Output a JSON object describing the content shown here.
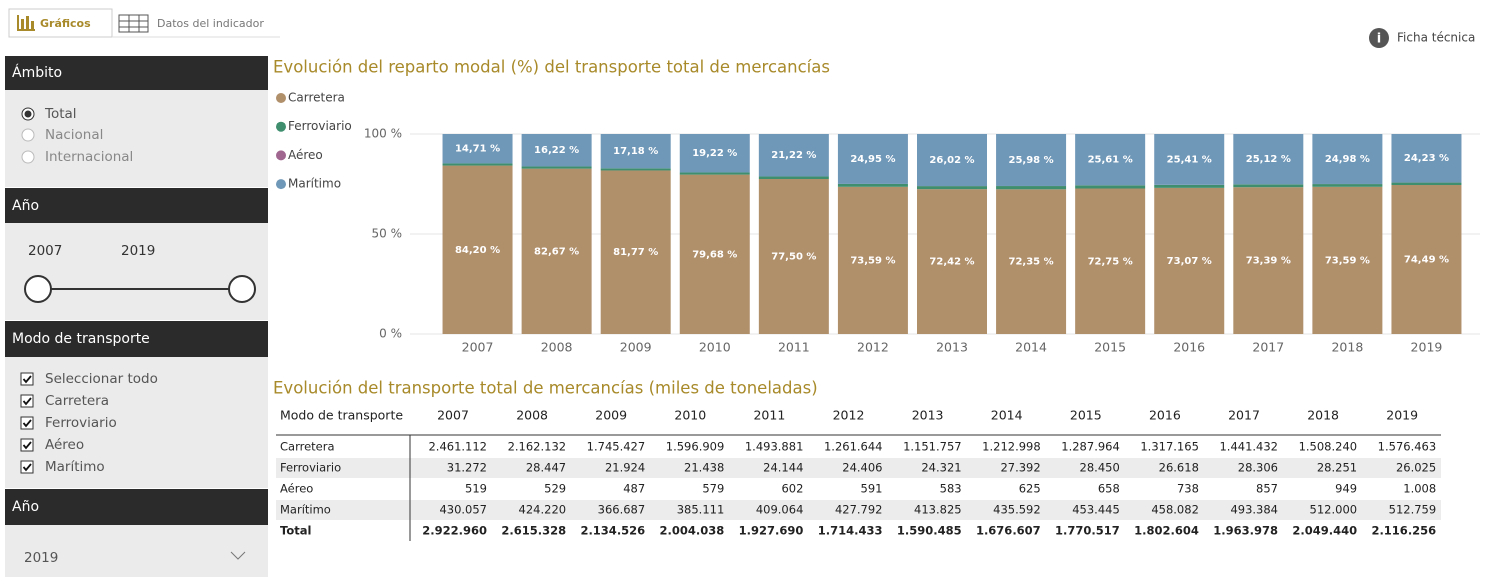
{
  "tabs": [
    "Gráficos",
    "Datos del indicador"
  ],
  "info": "Ficha técnica",
  "filters": {
    "ambito": {
      "title": "Ámbito",
      "options": [
        "Total",
        "Nacional",
        "Internacional"
      ]
    },
    "ano_range": {
      "title": "Año",
      "from": "2007",
      "to": "2019"
    },
    "modo": {
      "title": "Modo de transporte",
      "options": [
        "Seleccionar todo",
        "Carretera",
        "Ferroviario",
        "Aéreo",
        "Marítimo"
      ]
    },
    "ano": {
      "title": "Año",
      "selected": "2019"
    }
  },
  "chart_data": {
    "type": "stacked_bar",
    "title": "Evolución del reparto modal (%) del transporte total de mercancías",
    "categories": [
      "2007",
      "2008",
      "2009",
      "2010",
      "2011",
      "2012",
      "2013",
      "2014",
      "2015",
      "2016",
      "2017",
      "2018",
      "2019"
    ],
    "ylim": [
      0,
      100
    ],
    "yticks": [
      {
        "value": 0,
        "label": "0 %"
      },
      {
        "value": 50,
        "label": "50 %"
      },
      {
        "value": 100,
        "label": "100 %"
      }
    ],
    "grid": true,
    "legend": "top-left",
    "series": [
      {
        "name": "Carretera",
        "color": "#b08f6b",
        "values": [
          84.2,
          82.67,
          81.77,
          79.68,
          77.5,
          73.59,
          72.42,
          72.35,
          72.75,
          73.07,
          73.39,
          73.59,
          74.49
        ],
        "value_labels": [
          "84,20 %",
          "82,67 %",
          "81,77 %",
          "79,68 %",
          "77,50 %",
          "73,59 %",
          "72,42 %",
          "72,35 %",
          "72,75 %",
          "73,07 %",
          "73,39 %",
          "73,59 %",
          "74,49 %"
        ]
      },
      {
        "name": "Ferroviario",
        "color": "#3f8f6f",
        "values": [
          1.07,
          1.09,
          1.03,
          1.07,
          1.25,
          1.42,
          1.53,
          1.63,
          1.61,
          1.48,
          1.44,
          1.38,
          1.23
        ]
      },
      {
        "name": "Aéreo",
        "color": "#a0668f",
        "values": [
          0.02,
          0.02,
          0.02,
          0.03,
          0.03,
          0.03,
          0.04,
          0.04,
          0.04,
          0.04,
          0.04,
          0.05,
          0.05
        ]
      },
      {
        "name": "Marítimo",
        "color": "#6f97b7",
        "values": [
          14.71,
          16.22,
          17.18,
          19.22,
          21.22,
          24.95,
          26.02,
          25.98,
          25.61,
          25.41,
          25.12,
          24.98,
          24.23
        ],
        "value_labels": [
          "14,71 %",
          "16,22 %",
          "17,18 %",
          "19,22 %",
          "21,22 %",
          "24,95 %",
          "26,02 %",
          "25,98 %",
          "25,61 %",
          "25,41 %",
          "25,12 %",
          "24,98 %",
          "24,23 %"
        ]
      }
    ]
  },
  "table": {
    "title": "Evolución del transporte total de mercancías (miles de toneladas)",
    "header": [
      "Modo de transporte",
      "2007",
      "2008",
      "2009",
      "2010",
      "2011",
      "2012",
      "2013",
      "2014",
      "2015",
      "2016",
      "2017",
      "2018",
      "2019"
    ],
    "rows": [
      [
        "Carretera",
        "2.461.112",
        "2.162.132",
        "1.745.427",
        "1.596.909",
        "1.493.881",
        "1.261.644",
        "1.151.757",
        "1.212.998",
        "1.287.964",
        "1.317.165",
        "1.441.432",
        "1.508.240",
        "1.576.463"
      ],
      [
        "Ferroviario",
        "31.272",
        "28.447",
        "21.924",
        "21.438",
        "24.144",
        "24.406",
        "24.321",
        "27.392",
        "28.450",
        "26.618",
        "28.306",
        "28.251",
        "26.025"
      ],
      [
        "Aéreo",
        "519",
        "529",
        "487",
        "579",
        "602",
        "591",
        "583",
        "625",
        "658",
        "738",
        "857",
        "949",
        "1.008"
      ],
      [
        "Marítimo",
        "430.057",
        "424.220",
        "366.687",
        "385.111",
        "409.064",
        "427.792",
        "413.825",
        "435.592",
        "453.445",
        "458.082",
        "493.384",
        "512.000",
        "512.759"
      ],
      [
        "Total",
        "2.922.960",
        "2.615.328",
        "2.134.526",
        "2.004.038",
        "1.927.690",
        "1.714.433",
        "1.590.485",
        "1.676.607",
        "1.770.517",
        "1.802.604",
        "1.963.978",
        "2.049.440",
        "2.116.256"
      ]
    ]
  }
}
